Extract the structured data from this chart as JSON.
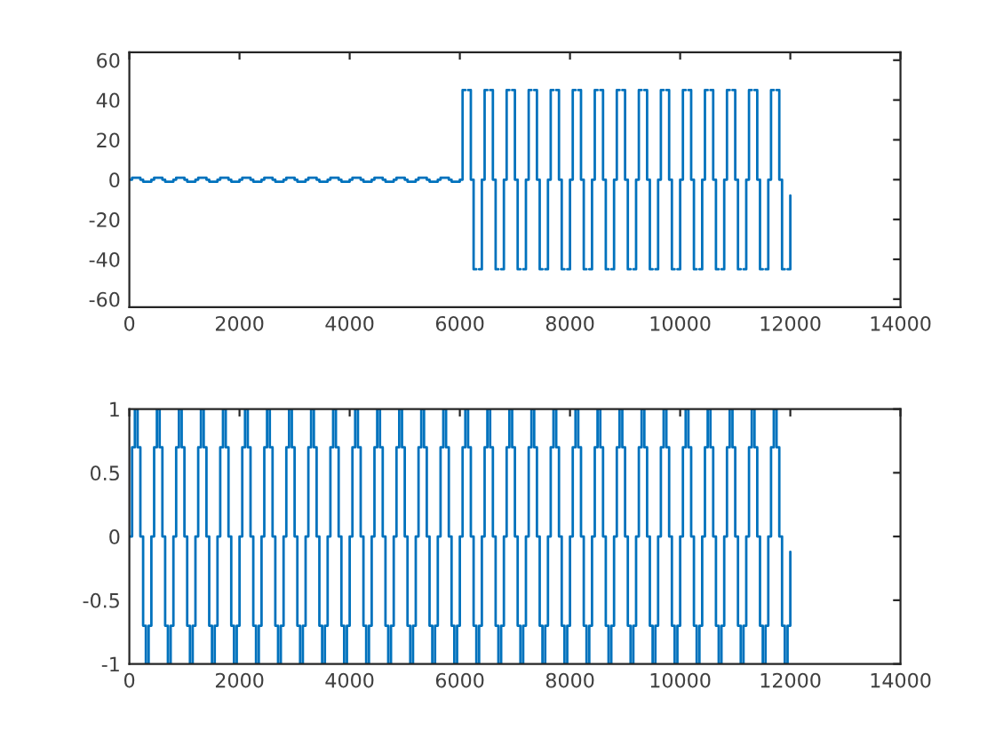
{
  "chart_data": [
    {
      "type": "step",
      "xlim": [
        0,
        14000
      ],
      "xticks": [
        0,
        2000,
        4000,
        6000,
        8000,
        10000,
        12000,
        14000
      ],
      "ylim": [
        -64,
        64
      ],
      "yticks": [
        -60,
        -40,
        -20,
        0,
        20,
        40,
        60
      ],
      "grid": false,
      "marker": "none",
      "line_style": "solid",
      "x": [
        0,
        50,
        100,
        150,
        200,
        250,
        300,
        350,
        400,
        450,
        500,
        550,
        600,
        650,
        700,
        750,
        800,
        850,
        900,
        950,
        1000,
        1050,
        1100,
        1150,
        1200,
        1250,
        1300,
        1350,
        1400,
        1450,
        1500,
        1550,
        1600,
        1650,
        1700,
        1750,
        1800,
        1850,
        1900,
        1950,
        2000,
        2050,
        2100,
        2150,
        2200,
        2250,
        2300,
        2350,
        2400,
        2450,
        2500,
        2550,
        2600,
        2650,
        2700,
        2750,
        2800,
        2850,
        2900,
        2950,
        3000,
        3050,
        3100,
        3150,
        3200,
        3250,
        3300,
        3350,
        3400,
        3450,
        3500,
        3550,
        3600,
        3650,
        3700,
        3750,
        3800,
        3850,
        3900,
        3950,
        4000,
        4050,
        4100,
        4150,
        4200,
        4250,
        4300,
        4350,
        4400,
        4450,
        4500,
        4550,
        4600,
        4650,
        4700,
        4750,
        4800,
        4850,
        4900,
        4950,
        5000,
        5050,
        5100,
        5150,
        5200,
        5250,
        5300,
        5350,
        5400,
        5450,
        5500,
        5550,
        5600,
        5650,
        5700,
        5750,
        5800,
        5850,
        5900,
        5950,
        6000,
        6050,
        6100,
        6150,
        6200,
        6250,
        6300,
        6350,
        6400,
        6450,
        6500,
        6550,
        6600,
        6650,
        6700,
        6750,
        6800,
        6850,
        6900,
        6950,
        7000,
        7050,
        7100,
        7150,
        7200,
        7250,
        7300,
        7350,
        7400,
        7450,
        7500,
        7550,
        7600,
        7650,
        7700,
        7750,
        7800,
        7850,
        7900,
        7950,
        8000,
        8050,
        8100,
        8150,
        8200,
        8250,
        8300,
        8350,
        8400,
        8450,
        8500,
        8550,
        8600,
        8650,
        8700,
        8750,
        8800,
        8850,
        8900,
        8950,
        9000,
        9050,
        9100,
        9150,
        9200,
        9250,
        9300,
        9350,
        9400,
        9450,
        9500,
        9550,
        9600,
        9650,
        9700,
        9750,
        9800,
        9850,
        9900,
        9950,
        10000,
        10050,
        10100,
        10150,
        10200,
        10250,
        10300,
        10350,
        10400,
        10450,
        10500,
        10550,
        10600,
        10650,
        10700,
        10750,
        10800,
        10850,
        10900,
        10950,
        11000,
        11050,
        11100,
        11150,
        11200,
        11250,
        11300,
        11350,
        11400,
        11450,
        11500,
        11550,
        11600,
        11650,
        11700,
        11750,
        11800,
        11850,
        11900,
        11950,
        12000
      ],
      "series": [
        {
          "color": "#0072bd",
          "values": [
            0,
            1,
            1,
            1,
            0,
            -1,
            -1,
            -1,
            0,
            1,
            1,
            1,
            0,
            -1,
            -1,
            -1,
            0,
            1,
            1,
            1,
            0,
            -1,
            -1,
            -1,
            0,
            1,
            1,
            1,
            0,
            -1,
            -1,
            -1,
            0,
            1,
            1,
            1,
            0,
            -1,
            -1,
            -1,
            0,
            1,
            1,
            1,
            0,
            -1,
            -1,
            -1,
            0,
            1,
            1,
            1,
            0,
            -1,
            -1,
            -1,
            0,
            1,
            1,
            1,
            0,
            -1,
            -1,
            -1,
            0,
            1,
            1,
            1,
            0,
            -1,
            -1,
            -1,
            0,
            1,
            1,
            1,
            0,
            -1,
            -1,
            -1,
            0,
            1,
            1,
            1,
            0,
            -1,
            -1,
            -1,
            0,
            1,
            1,
            1,
            0,
            -1,
            -1,
            -1,
            0,
            1,
            1,
            1,
            0,
            -1,
            -1,
            -1,
            0,
            1,
            1,
            1,
            0,
            -1,
            -1,
            -1,
            0,
            1,
            1,
            1,
            0,
            -1,
            -1,
            -1,
            0,
            45,
            null,
            45,
            0,
            -45,
            null,
            -45,
            0,
            45,
            null,
            45,
            0,
            -45,
            null,
            -45,
            0,
            45,
            null,
            45,
            0,
            -45,
            null,
            -45,
            0,
            45,
            null,
            45,
            0,
            -45,
            null,
            -45,
            0,
            45,
            null,
            45,
            0,
            -45,
            null,
            -45,
            0,
            45,
            null,
            45,
            0,
            -45,
            null,
            -45,
            0,
            45,
            null,
            45,
            0,
            -45,
            null,
            -45,
            0,
            45,
            null,
            45,
            0,
            -45,
            null,
            -45,
            0,
            45,
            null,
            45,
            0,
            -45,
            null,
            -45,
            0,
            45,
            null,
            45,
            0,
            -45,
            null,
            -45,
            0,
            45,
            null,
            45,
            0,
            -45,
            null,
            -45,
            0,
            45,
            null,
            45,
            0,
            -45,
            null,
            -45,
            0,
            45,
            null,
            45,
            0,
            -45,
            null,
            -45,
            0,
            45,
            null,
            45,
            0,
            -45,
            null,
            -45,
            0,
            45,
            null,
            45,
            0,
            -45,
            null,
            -45,
            -8
          ]
        }
      ]
    },
    {
      "type": "step",
      "xlim": [
        0,
        14000
      ],
      "xticks": [
        0,
        2000,
        4000,
        6000,
        8000,
        10000,
        12000,
        14000
      ],
      "ylim": [
        -1,
        1
      ],
      "yticks": [
        -1,
        -0.5,
        0,
        0.5,
        1
      ],
      "grid": false,
      "marker": "none",
      "line_style": "solid",
      "x": [
        0,
        50,
        100,
        150,
        200,
        250,
        300,
        350,
        400,
        450,
        500,
        550,
        600,
        650,
        700,
        750,
        800,
        850,
        900,
        950,
        1000,
        1050,
        1100,
        1150,
        1200,
        1250,
        1300,
        1350,
        1400,
        1450,
        1500,
        1550,
        1600,
        1650,
        1700,
        1750,
        1800,
        1850,
        1900,
        1950,
        2000,
        2050,
        2100,
        2150,
        2200,
        2250,
        2300,
        2350,
        2400,
        2450,
        2500,
        2550,
        2600,
        2650,
        2700,
        2750,
        2800,
        2850,
        2900,
        2950,
        3000,
        3050,
        3100,
        3150,
        3200,
        3250,
        3300,
        3350,
        3400,
        3450,
        3500,
        3550,
        3600,
        3650,
        3700,
        3750,
        3800,
        3850,
        3900,
        3950,
        4000,
        4050,
        4100,
        4150,
        4200,
        4250,
        4300,
        4350,
        4400,
        4450,
        4500,
        4550,
        4600,
        4650,
        4700,
        4750,
        4800,
        4850,
        4900,
        4950,
        5000,
        5050,
        5100,
        5150,
        5200,
        5250,
        5300,
        5350,
        5400,
        5450,
        5500,
        5550,
        5600,
        5650,
        5700,
        5750,
        5800,
        5850,
        5900,
        5950,
        6000,
        6050,
        6100,
        6150,
        6200,
        6250,
        6300,
        6350,
        6400,
        6450,
        6500,
        6550,
        6600,
        6650,
        6700,
        6750,
        6800,
        6850,
        6900,
        6950,
        7000,
        7050,
        7100,
        7150,
        7200,
        7250,
        7300,
        7350,
        7400,
        7450,
        7500,
        7550,
        7600,
        7650,
        7700,
        7750,
        7800,
        7850,
        7900,
        7950,
        8000,
        8050,
        8100,
        8150,
        8200,
        8250,
        8300,
        8350,
        8400,
        8450,
        8500,
        8550,
        8600,
        8650,
        8700,
        8750,
        8800,
        8850,
        8900,
        8950,
        9000,
        9050,
        9100,
        9150,
        9200,
        9250,
        9300,
        9350,
        9400,
        9450,
        9500,
        9550,
        9600,
        9650,
        9700,
        9750,
        9800,
        9850,
        9900,
        9950,
        10000,
        10050,
        10100,
        10150,
        10200,
        10250,
        10300,
        10350,
        10400,
        10450,
        10500,
        10550,
        10600,
        10650,
        10700,
        10750,
        10800,
        10850,
        10900,
        10950,
        11000,
        11050,
        11100,
        11150,
        11200,
        11250,
        11300,
        11350,
        11400,
        11450,
        11500,
        11550,
        11600,
        11650,
        11700,
        11750,
        11800,
        11850,
        11900,
        11950,
        12000
      ],
      "series": [
        {
          "color": "#0072bd",
          "values": [
            0,
            0.7,
            1,
            0.7,
            0,
            -0.7,
            -1,
            -0.7,
            0,
            0.7,
            1,
            0.7,
            0,
            -0.7,
            -1,
            -0.7,
            0,
            0.7,
            1,
            0.7,
            0,
            -0.7,
            -1,
            -0.7,
            0,
            0.7,
            1,
            0.7,
            0,
            -0.7,
            -1,
            -0.7,
            0,
            0.7,
            1,
            0.7,
            0,
            -0.7,
            -1,
            -0.7,
            0,
            0.7,
            1,
            0.7,
            0,
            -0.7,
            -1,
            -0.7,
            0,
            0.7,
            1,
            0.7,
            0,
            -0.7,
            -1,
            -0.7,
            0,
            0.7,
            1,
            0.7,
            0,
            -0.7,
            -1,
            -0.7,
            0,
            0.7,
            1,
            0.7,
            0,
            -0.7,
            -1,
            -0.7,
            0,
            0.7,
            1,
            0.7,
            0,
            -0.7,
            -1,
            -0.7,
            0,
            0.7,
            1,
            0.7,
            0,
            -0.7,
            -1,
            -0.7,
            0,
            0.7,
            1,
            0.7,
            0,
            -0.7,
            -1,
            -0.7,
            0,
            0.7,
            1,
            0.7,
            0,
            -0.7,
            -1,
            -0.7,
            0,
            0.7,
            1,
            0.7,
            0,
            -0.7,
            -1,
            -0.7,
            0,
            0.7,
            1,
            0.7,
            0,
            -0.7,
            -1,
            -0.7,
            0,
            0.7,
            1,
            0.7,
            0,
            -0.7,
            -1,
            -0.7,
            0,
            0.7,
            1,
            0.7,
            0,
            -0.7,
            -1,
            -0.7,
            0,
            0.7,
            1,
            0.7,
            0,
            -0.7,
            -1,
            -0.7,
            0,
            0.7,
            1,
            0.7,
            0,
            -0.7,
            -1,
            -0.7,
            0,
            0.7,
            1,
            0.7,
            0,
            -0.7,
            -1,
            -0.7,
            0,
            0.7,
            1,
            0.7,
            0,
            -0.7,
            -1,
            -0.7,
            0,
            0.7,
            1,
            0.7,
            0,
            -0.7,
            -1,
            -0.7,
            0,
            0.7,
            1,
            0.7,
            0,
            -0.7,
            -1,
            -0.7,
            0,
            0.7,
            1,
            0.7,
            0,
            -0.7,
            -1,
            -0.7,
            0,
            0.7,
            1,
            0.7,
            0,
            -0.7,
            -1,
            -0.7,
            0,
            0.7,
            1,
            0.7,
            0,
            -0.7,
            -1,
            -0.7,
            0,
            0.7,
            1,
            0.7,
            0,
            -0.7,
            -1,
            -0.7,
            0,
            0.7,
            1,
            0.7,
            0,
            -0.7,
            -1,
            -0.7,
            0,
            0.7,
            1,
            0.7,
            0,
            -0.7,
            -1,
            -0.7,
            0,
            0.7,
            1,
            0.7,
            0,
            -0.7,
            -1,
            -0.7,
            -0.12
          ]
        }
      ]
    }
  ]
}
